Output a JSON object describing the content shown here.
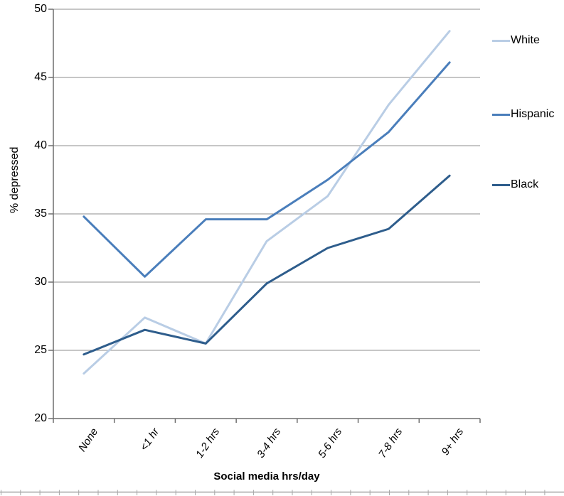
{
  "chart_data": {
    "type": "line",
    "title": "",
    "categories": [
      "None",
      "<1 hr",
      "1-2 hrs",
      "3-4 hrs",
      "5-6 hrs",
      "7-8 hrs",
      "9+ hrs"
    ],
    "series": [
      {
        "name": "White",
        "color": "#b9cde5",
        "values": [
          23.3,
          27.4,
          25.5,
          33.0,
          36.3,
          43.0,
          48.4
        ]
      },
      {
        "name": "Hispanic",
        "color": "#4a7ebb",
        "values": [
          34.8,
          30.4,
          34.6,
          34.6,
          37.5,
          41.0,
          46.1
        ]
      },
      {
        "name": "Black",
        "color": "#2e5d8c",
        "values": [
          24.7,
          26.5,
          25.5,
          29.9,
          32.5,
          33.9,
          37.8
        ]
      }
    ],
    "xlabel": "Social media hrs/day",
    "ylabel": "% depressed",
    "ylim": [
      20,
      50
    ],
    "ytick_step": 5,
    "y_tick_labels": [
      "20",
      "25",
      "30",
      "35",
      "40",
      "45",
      "50"
    ],
    "grid": true,
    "legend_position": "right",
    "colors": {
      "gridline": "#8c8c8c",
      "axis": "#6e6e6e",
      "text": "#000000",
      "bottom_border": "#a6a6a6"
    }
  }
}
